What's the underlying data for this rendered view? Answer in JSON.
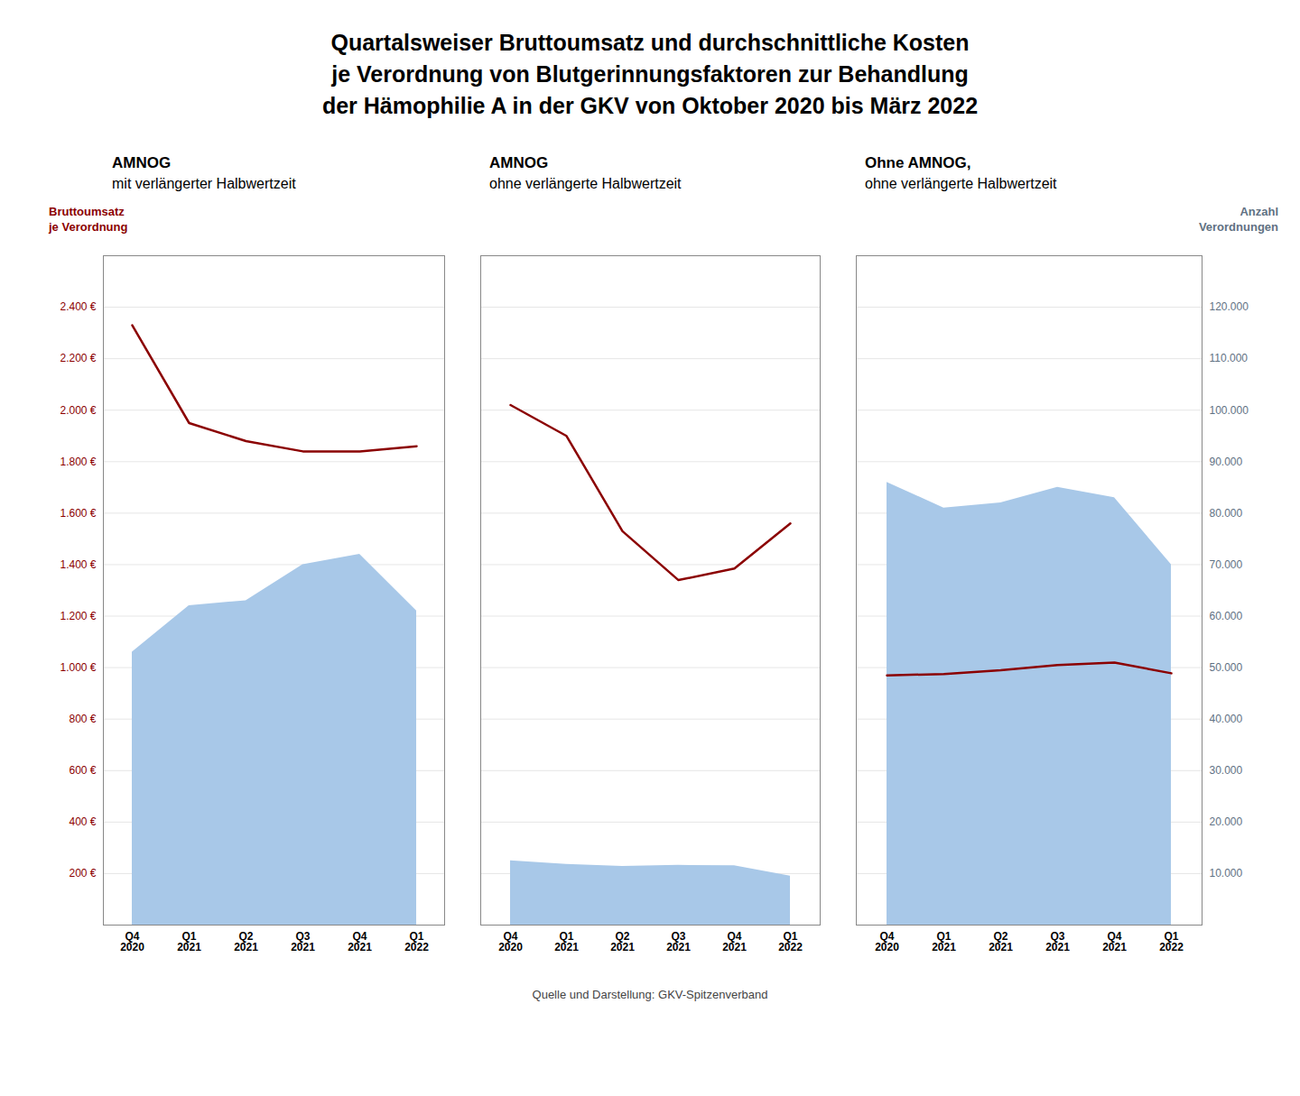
{
  "chart_data": [
    {
      "type": "area_line",
      "title": "AMNOG",
      "subtitle": "mit verlängerter Halbwertzeit",
      "annotations": [
        "Quartalsweiser Bruttoumsatz und durchschnittliche Kosten\nje Verordnung von Blutgerinnungsfaktoren zur Behandlung\nder Hämophilie A in der GKV von Oktober 2020 bis März 2022",
        "Quelle und Darstellung: GKV-Spitzenverband"
      ],
      "ylabel": "Bruttoumsatz\nje Verordnung",
      "categories": [
        "Q4\n2020",
        "Q1\n2021",
        "Q2\n2021",
        "Q3\n2021",
        "Q4\n2021",
        "Q1\n2022"
      ],
      "series": [
        {
          "type": "area",
          "axis": "y2",
          "color": "#a8c8e8",
          "values": [
            53000,
            62000,
            63000,
            70000,
            72000,
            61000
          ]
        },
        {
          "type": "line",
          "color": "#8b0000",
          "values": [
            2330,
            1950,
            1880,
            1840,
            1840,
            1860
          ]
        }
      ],
      "ylim": [
        0,
        2600
      ],
      "yticks": [
        {
          "value": 200,
          "label": "200 €"
        },
        {
          "value": 400,
          "label": "400 €"
        },
        {
          "value": 600,
          "label": "600 €"
        },
        {
          "value": 800,
          "label": "800 €"
        },
        {
          "value": 1000,
          "label": "1.000 €"
        },
        {
          "value": 1200,
          "label": "1.200 €"
        },
        {
          "value": 1400,
          "label": "1.400 €"
        },
        {
          "value": 1600,
          "label": "1.600 €"
        },
        {
          "value": 1800,
          "label": "1.800 €"
        },
        {
          "value": 2000,
          "label": "2.000 €"
        },
        {
          "value": 2200,
          "label": "2.200 €"
        },
        {
          "value": 2400,
          "label": "2.400 €"
        }
      ],
      "y2lim": [
        0,
        130000
      ],
      "grid": true
    },
    {
      "type": "area_line",
      "title": "AMNOG",
      "subtitle": "ohne verlängerte Halbwertzeit",
      "categories": [
        "Q4\n2020",
        "Q1\n2021",
        "Q2\n2021",
        "Q3\n2021",
        "Q4\n2021",
        "Q1\n2022"
      ],
      "series": [
        {
          "type": "area",
          "axis": "y2",
          "color": "#a8c8e8",
          "values": [
            12500,
            11800,
            11400,
            11600,
            11500,
            9500
          ]
        },
        {
          "type": "line",
          "color": "#8b0000",
          "values": [
            2020,
            1900,
            1530,
            1340,
            1385,
            1560
          ]
        }
      ],
      "ylim": [
        0,
        2600
      ],
      "yticks": [
        200,
        400,
        600,
        800,
        1000,
        1200,
        1400,
        1600,
        1800,
        2000,
        2200,
        2400
      ],
      "y2lim": [
        0,
        130000
      ],
      "tick_labels": "x",
      "grid": true
    },
    {
      "type": "area_line",
      "title": "Ohne AMNOG,",
      "subtitle": "ohne verlängerte Halbwertzeit",
      "y2label": "Anzahl\nVerordnungen",
      "categories": [
        "Q4\n2020",
        "Q1\n2021",
        "Q2\n2021",
        "Q3\n2021",
        "Q4\n2021",
        "Q1\n2022"
      ],
      "series": [
        {
          "type": "area",
          "axis": "y2",
          "color": "#a8c8e8",
          "values": [
            86000,
            81000,
            82000,
            85000,
            83000,
            70000
          ]
        },
        {
          "type": "line",
          "color": "#8b0000",
          "values": [
            970,
            975,
            990,
            1010,
            1020,
            978
          ]
        }
      ],
      "ylim": [
        0,
        2600
      ],
      "yticks": [
        200,
        400,
        600,
        800,
        1000,
        1200,
        1400,
        1600,
        1800,
        2000,
        2200,
        2400
      ],
      "y2lim": [
        0,
        130000
      ],
      "y2ticks": [
        {
          "value": 10000,
          "label": "10.000"
        },
        {
          "value": 20000,
          "label": "20.000"
        },
        {
          "value": 30000,
          "label": "30.000"
        },
        {
          "value": 40000,
          "label": "40.000"
        },
        {
          "value": 50000,
          "label": "50.000"
        },
        {
          "value": 60000,
          "label": "60.000"
        },
        {
          "value": 70000,
          "label": "70.000"
        },
        {
          "value": 80000,
          "label": "80.000"
        },
        {
          "value": 90000,
          "label": "90.000"
        },
        {
          "value": 100000,
          "label": "100.000"
        },
        {
          "value": 110000,
          "label": "110.000"
        },
        {
          "value": 120000,
          "label": "120.000"
        }
      ],
      "tick_labels": "x",
      "grid": true
    }
  ]
}
